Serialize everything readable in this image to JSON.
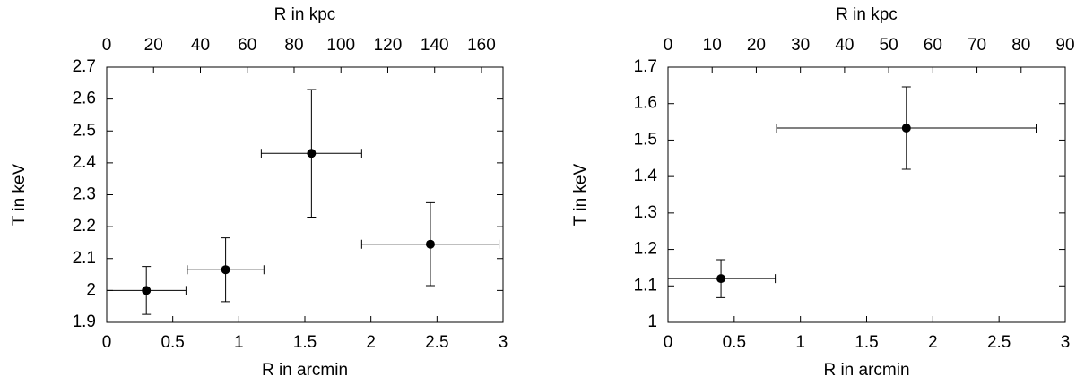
{
  "chart_data": [
    {
      "type": "scatter",
      "color": "#000000",
      "xlabel": "R in arcmin",
      "x2label": "R in kpc",
      "ylabel": "T in keV",
      "x": [
        0.3,
        0.9,
        1.55,
        2.45
      ],
      "values": [
        2.0,
        2.065,
        2.43,
        2.145
      ],
      "xerr": [
        0.3,
        0.29,
        0.38,
        0.52
      ],
      "yerr": [
        0.075,
        0.1,
        0.2,
        0.13
      ],
      "xlim": [
        0,
        3
      ],
      "xticks": [
        0,
        0.5,
        1,
        1.5,
        2,
        2.5,
        3
      ],
      "x2lim": [
        0,
        169.2
      ],
      "x2ticks": [
        0,
        20,
        40,
        60,
        80,
        100,
        120,
        140,
        160
      ],
      "ylim": [
        1.9,
        2.7
      ],
      "yticks": [
        1.9,
        2,
        2.1,
        2.2,
        2.3,
        2.4,
        2.5,
        2.6,
        2.7
      ]
    },
    {
      "type": "scatter",
      "color": "#000000",
      "xlabel": "R in arcmin",
      "x2label": "R in kpc",
      "ylabel": "T in keV",
      "x": [
        0.4,
        1.8
      ],
      "values": [
        1.12,
        1.533
      ],
      "xerr": [
        0.41,
        0.98
      ],
      "yerr": [
        0.052,
        0.113
      ],
      "xlim": [
        0,
        3
      ],
      "xticks": [
        0,
        0.5,
        1,
        1.5,
        2,
        2.5,
        3
      ],
      "x2lim": [
        0,
        90
      ],
      "x2ticks": [
        0,
        10,
        20,
        30,
        40,
        50,
        60,
        70,
        80,
        90
      ],
      "ylim": [
        1,
        1.7
      ],
      "yticks": [
        1,
        1.1,
        1.2,
        1.3,
        1.4,
        1.5,
        1.6,
        1.7
      ]
    }
  ]
}
